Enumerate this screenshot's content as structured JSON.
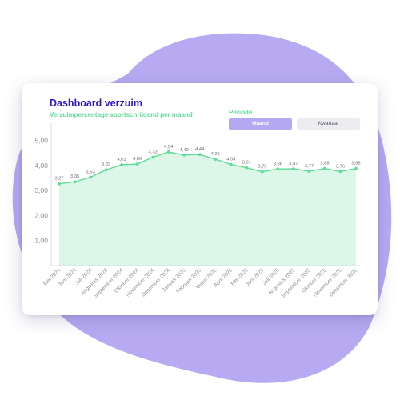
{
  "header": {
    "title": "Dashboard verzuim",
    "subtitle": "Verzuimpercentage voortschrijdend per maand"
  },
  "period": {
    "label": "Periode",
    "options": [
      "Maand",
      "Kwartaal"
    ],
    "selected": "Maand"
  },
  "colors": {
    "blob": "#b7aaf2",
    "title": "#2b17c9",
    "accent_green": "#5fdc96",
    "area_fill": "#dcf7e7",
    "active_button": "#b3a8f1"
  },
  "chart_data": {
    "type": "area",
    "categories": [
      "Mei 2024",
      "Juni 2024",
      "Juli 2024",
      "Augustus 2024",
      "September 2024",
      "Oktober 2024",
      "November 2024",
      "December 2024",
      "Januari 2025",
      "Februari 2025",
      "Maart 2025",
      "April 2025",
      "Mei 2025",
      "Juni 2025",
      "Juli 2025",
      "Augustus 2025",
      "September 2025",
      "Oktober 2025",
      "November 2025",
      "December 2025"
    ],
    "values": [
      3.27,
      3.35,
      3.53,
      3.83,
      4.03,
      4.06,
      4.33,
      4.54,
      4.42,
      4.44,
      4.25,
      4.04,
      3.91,
      3.75,
      3.86,
      3.87,
      3.77,
      3.88,
      3.76,
      3.88
    ],
    "value_labels": [
      "3,27",
      "3,35",
      "3,53",
      "3,83",
      "4,03",
      "4,06",
      "4,33",
      "4,54",
      "4,42",
      "4,44",
      "4,25",
      "4,04",
      "3,91",
      "3,75",
      "3,86",
      "3,87",
      "3,77",
      "3,88",
      "3,76",
      "3,88"
    ],
    "y_ticks": [
      "1,00",
      "2,00",
      "3,00",
      "4,00",
      "5,00"
    ],
    "ylim": [
      0,
      5.5
    ],
    "title": "",
    "xlabel": "",
    "ylabel": "",
    "grid": false,
    "legend": "none"
  }
}
